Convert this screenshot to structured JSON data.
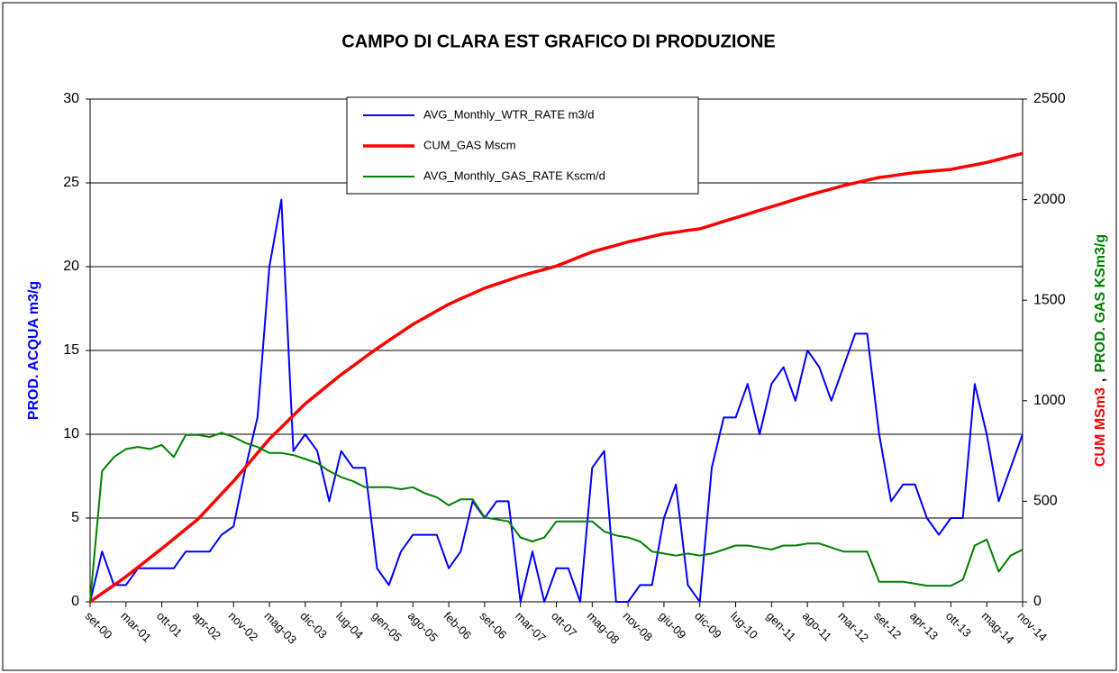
{
  "chart_data": {
    "type": "line",
    "title": "CAMPO DI CLARA EST GRAFICO DI PRODUZIONE",
    "ylabel": "PROD. ACQUA m3/g",
    "ylabel_color": "#0000ff",
    "y2label": [
      {
        "text": "CUM MSm3",
        "color": "#ff0000"
      },
      {
        "text": ",",
        "color": "#000000"
      },
      {
        "text": "PROD. GAS KSm3/g",
        "color": "#008000"
      }
    ],
    "categories": [
      "set-00",
      null,
      null,
      "mar-01",
      null,
      null,
      "ott-01",
      null,
      null,
      "apr-02",
      null,
      null,
      "nov-02",
      null,
      null,
      "mag-03",
      null,
      null,
      "dic-03",
      null,
      null,
      "lug-04",
      null,
      null,
      "gen-05",
      null,
      null,
      "ago-05",
      null,
      null,
      "feb-06",
      null,
      null,
      "set-06",
      null,
      null,
      "mar-07",
      null,
      null,
      "ott-07",
      null,
      null,
      "mag-08",
      null,
      null,
      "nov-08",
      null,
      null,
      "giu-09",
      null,
      null,
      "dic-09",
      null,
      null,
      "lug-10",
      null,
      null,
      "gen-11",
      null,
      null,
      "ago-11",
      null,
      null,
      "mar-12",
      null,
      null,
      "set-12",
      null,
      null,
      "apr-13",
      null,
      null,
      "ott-13",
      null,
      null,
      "mag-14",
      null,
      null,
      "nov-14"
    ],
    "ylim": [
      0,
      30
    ],
    "yticks": [
      0,
      5,
      10,
      15,
      20,
      25,
      30
    ],
    "y2lim": [
      0,
      2500
    ],
    "y2ticks": [
      0,
      500,
      1000,
      1500,
      2000,
      2500
    ],
    "grid": true,
    "legend": "top",
    "series": [
      {
        "name": "AVG_Monthly_WTR_RATE m3/d",
        "color": "#0000ff",
        "values": [
          0,
          3,
          1,
          1,
          2,
          2,
          2,
          2,
          3,
          3,
          3,
          4,
          4.5,
          8,
          11,
          20,
          24,
          9,
          10,
          9,
          6,
          9,
          8,
          8,
          2,
          1,
          3,
          4,
          4,
          4,
          2,
          3,
          6,
          5,
          6,
          6,
          0,
          3,
          0,
          2,
          2,
          0,
          8,
          9,
          0,
          0,
          1,
          1,
          5,
          7,
          1,
          0,
          8,
          11,
          11,
          13,
          10,
          13,
          14,
          12,
          15,
          14,
          12,
          14,
          16,
          16,
          10,
          6,
          7,
          7,
          5,
          4,
          5,
          5,
          13,
          10,
          6,
          8,
          10
        ]
      },
      {
        "name": "CUM_GAS Mscm",
        "color": "#ff0000",
        "axis": "y2",
        "values": [
          0,
          42,
          83,
          125,
          172,
          218,
          265,
          313,
          362,
          410,
          473,
          537,
          600,
          670,
          740,
          810,
          868,
          927,
          985,
          1033,
          1082,
          1130,
          1173,
          1217,
          1260,
          1300,
          1340,
          1380,
          1413,
          1447,
          1480,
          1507,
          1533,
          1560,
          1580,
          1600,
          1620,
          1637,
          1653,
          1670,
          1693,
          1717,
          1740,
          1757,
          1773,
          1790,
          1803,
          1817,
          1830,
          1838,
          1847,
          1855,
          1873,
          1892,
          1910,
          1928,
          1947,
          1965,
          1983,
          2002,
          2020,
          2037,
          2053,
          2070,
          2083,
          2097,
          2110,
          2118,
          2127,
          2135,
          2140,
          2145,
          2150,
          2162,
          2173,
          2185,
          2200,
          2215,
          2230
        ]
      },
      {
        "name": "AVG_Monthly_GAS_RATE Kscm/d",
        "color": "#008000",
        "axis": "y2",
        "values": [
          0,
          650,
          720,
          760,
          770,
          760,
          780,
          720,
          830,
          830,
          820,
          840,
          820,
          790,
          770,
          740,
          740,
          730,
          710,
          690,
          650,
          620,
          600,
          570,
          570,
          570,
          560,
          570,
          540,
          520,
          480,
          510,
          510,
          420,
          410,
          400,
          320,
          300,
          320,
          400,
          400,
          400,
          400,
          350,
          330,
          320,
          300,
          250,
          240,
          230,
          240,
          230,
          240,
          260,
          280,
          280,
          270,
          260,
          280,
          280,
          290,
          290,
          270,
          250,
          250,
          250,
          100,
          100,
          100,
          90,
          80,
          80,
          80,
          110,
          280,
          310,
          150,
          230,
          260
        ]
      }
    ]
  }
}
